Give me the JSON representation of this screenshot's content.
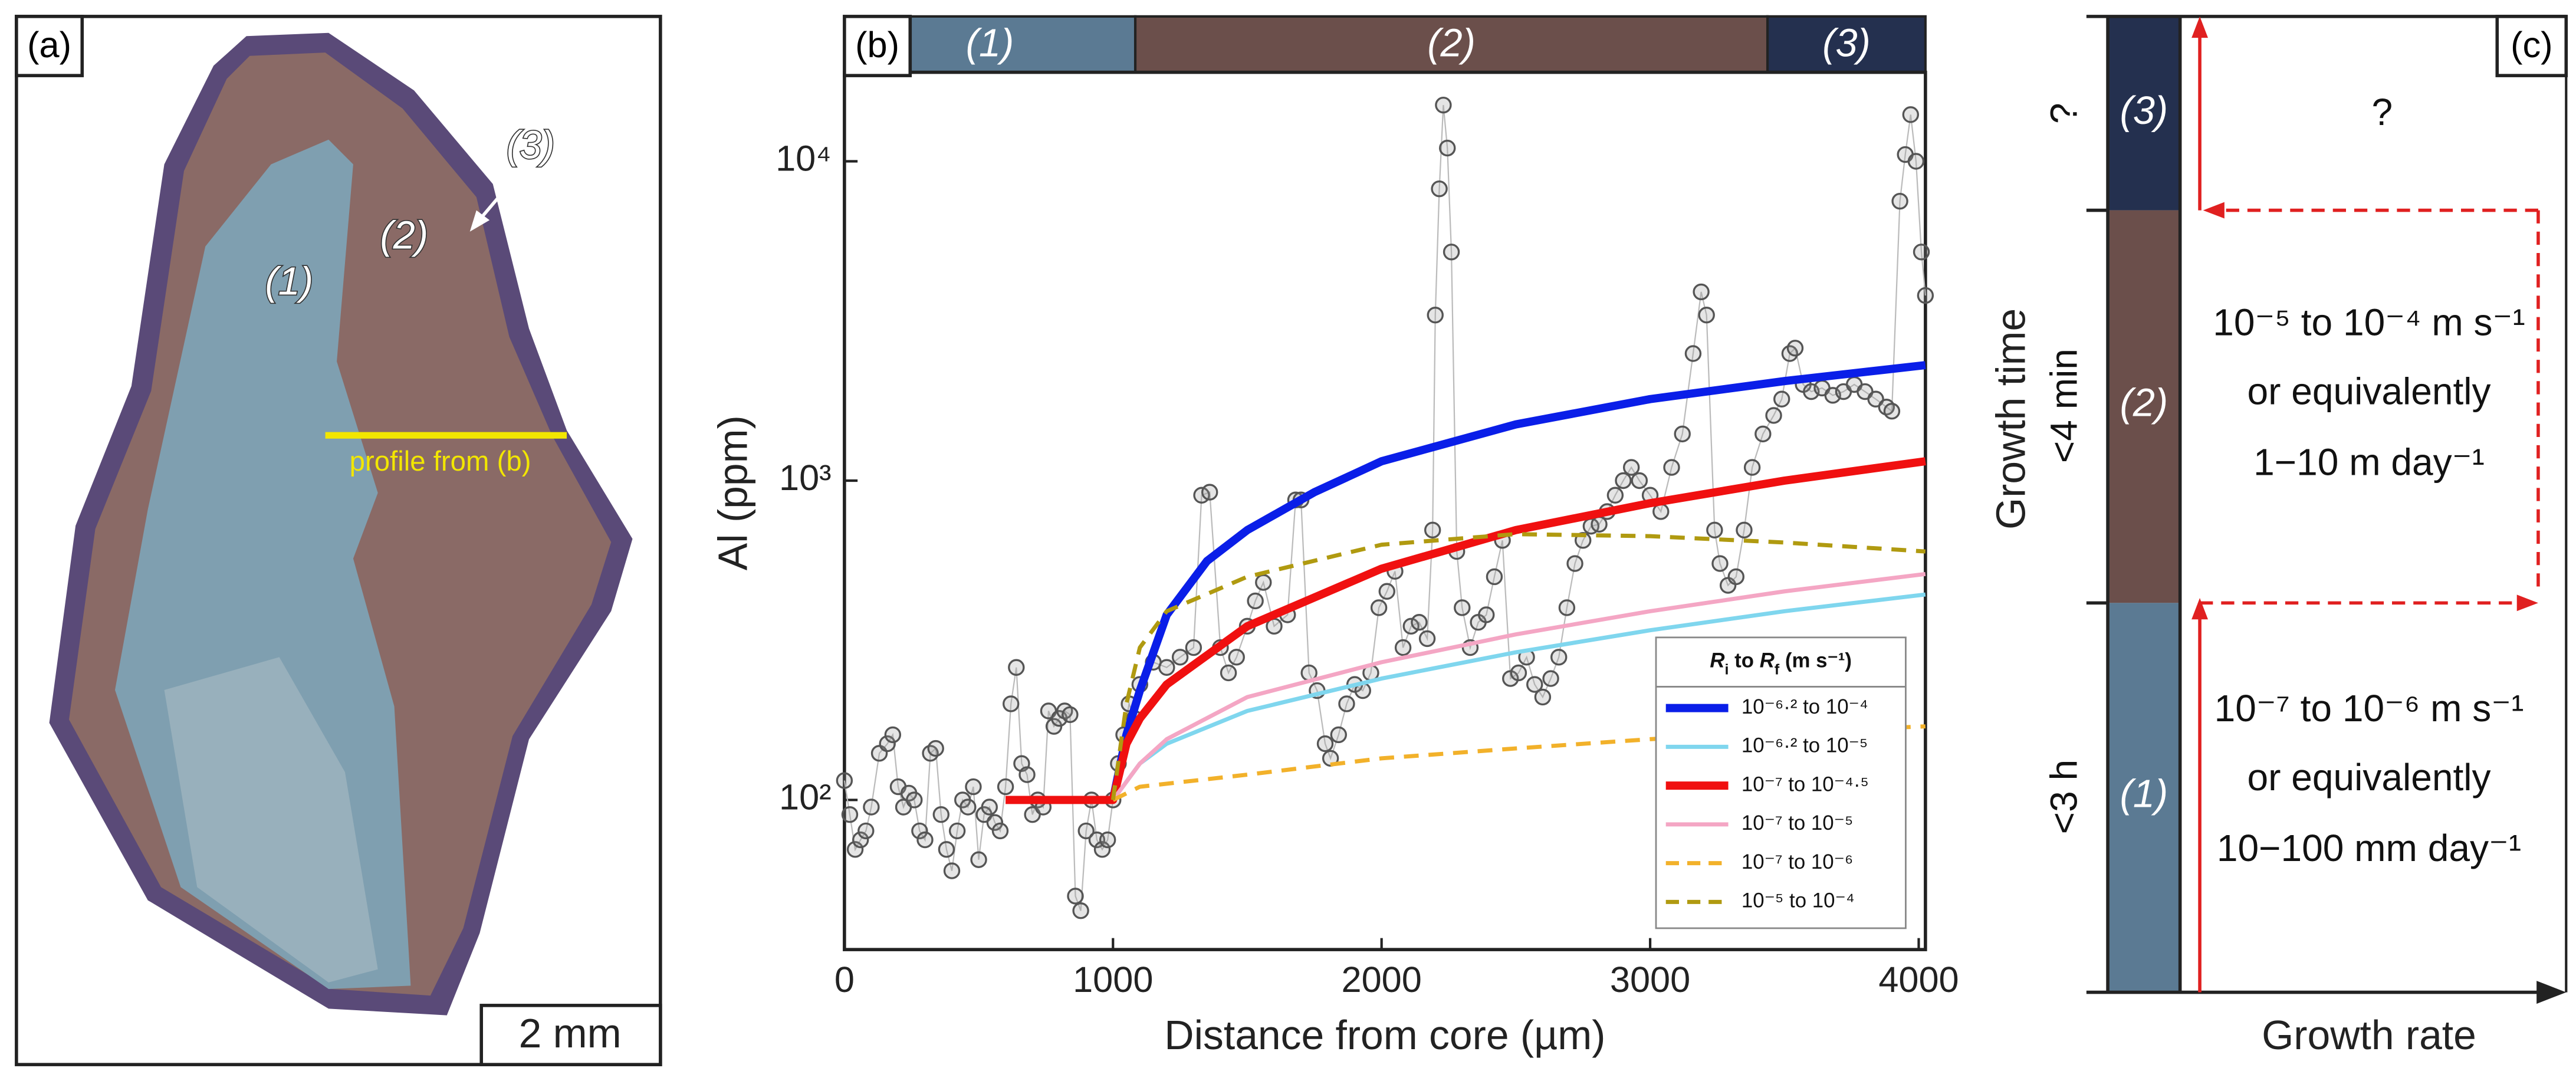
{
  "panel_a": {
    "label": "(a)",
    "zone_labels": [
      "(1)",
      "(2)",
      "(3)"
    ],
    "profile_label": "profile from (b)",
    "scale": "2 mm"
  },
  "chart_data": {
    "type": "scatter",
    "label": "(b)",
    "x_label": "Distance from core (µm)",
    "y_label": "Al (ppm)",
    "log_y": true,
    "xlim": [
      0,
      4025
    ],
    "ylim": [
      34,
      19000
    ],
    "xticks": [
      0,
      1000,
      2000,
      3000,
      4000
    ],
    "yticks": [
      {
        "value": 100,
        "label": "10²"
      },
      {
        "value": 1000,
        "label": "10³"
      },
      {
        "value": 10000,
        "label": "10⁴"
      }
    ],
    "zones": [
      {
        "label": "(1)",
        "start": 0,
        "end": 1083,
        "color": "#5b7a93"
      },
      {
        "label": "(2)",
        "start": 1083,
        "end": 3437,
        "color": "#6b4f4b"
      },
      {
        "label": "(3)",
        "start": 3437,
        "end": 4025,
        "color": "#24304f"
      }
    ],
    "points": {
      "color": "#555555",
      "x": [
        0,
        20,
        40,
        60,
        80,
        100,
        130,
        160,
        180,
        200,
        220,
        240,
        260,
        280,
        300,
        320,
        340,
        360,
        380,
        400,
        420,
        440,
        460,
        480,
        500,
        520,
        540,
        560,
        580,
        600,
        620,
        640,
        660,
        680,
        700,
        720,
        740,
        760,
        780,
        800,
        820,
        840,
        860,
        880,
        900,
        920,
        940,
        960,
        980,
        1000,
        1020,
        1040,
        1060,
        1080,
        1100,
        1150,
        1200,
        1250,
        1300,
        1330,
        1360,
        1400,
        1430,
        1460,
        1500,
        1530,
        1560,
        1600,
        1650,
        1680,
        1700,
        1730,
        1760,
        1790,
        1810,
        1840,
        1870,
        1900,
        1930,
        1960,
        1990,
        2020,
        2050,
        2080,
        2110,
        2140,
        2170,
        2190,
        2200,
        2215,
        2230,
        2245,
        2260,
        2280,
        2300,
        2330,
        2360,
        2390,
        2420,
        2450,
        2480,
        2510,
        2540,
        2570,
        2600,
        2630,
        2660,
        2690,
        2720,
        2750,
        2780,
        2810,
        2840,
        2870,
        2900,
        2930,
        2960,
        3000,
        3040,
        3080,
        3120,
        3160,
        3190,
        3210,
        3240,
        3260,
        3290,
        3320,
        3350,
        3380,
        3420,
        3460,
        3490,
        3520,
        3540,
        3570,
        3600,
        3640,
        3680,
        3720,
        3760,
        3800,
        3840,
        3880,
        3900,
        3930,
        3950,
        3970,
        3990,
        4010,
        4025
      ],
      "values": [
        115,
        90,
        70,
        75,
        80,
        95,
        140,
        150,
        160,
        110,
        95,
        105,
        100,
        80,
        75,
        140,
        145,
        90,
        70,
        60,
        80,
        100,
        95,
        110,
        65,
        90,
        95,
        85,
        80,
        110,
        200,
        260,
        130,
        120,
        90,
        100,
        95,
        190,
        170,
        180,
        190,
        185,
        50,
        45,
        80,
        100,
        75,
        70,
        75,
        100,
        130,
        160,
        200,
        180,
        230,
        270,
        260,
        280,
        300,
        900,
        920,
        300,
        250,
        280,
        350,
        420,
        480,
        350,
        380,
        870,
        870,
        250,
        220,
        150,
        135,
        160,
        200,
        230,
        220,
        250,
        400,
        450,
        520,
        300,
        350,
        360,
        320,
        700,
        3300,
        8200,
        15000,
        11000,
        5200,
        600,
        400,
        300,
        360,
        380,
        500,
        650,
        240,
        250,
        280,
        230,
        210,
        240,
        280,
        400,
        550,
        650,
        720,
        730,
        800,
        900,
        1000,
        1100,
        1000,
        900,
        800,
        1100,
        1400,
        2500,
        3900,
        3300,
        700,
        550,
        470,
        500,
        700,
        1100,
        1400,
        1600,
        1800,
        2500,
        2600,
        2000,
        1900,
        1950,
        1850,
        1900,
        2000,
        1900,
        1800,
        1700,
        1650,
        7500,
        10500,
        14000,
        10000,
        5200,
        3800
      ]
    },
    "legend": "lower right",
    "legend_title": [
      "R",
      "i",
      " to ",
      "R",
      "f",
      " (m s⁻¹)"
    ],
    "series": [
      {
        "name": "10⁻⁶·² to 10⁻⁴",
        "color": "#0a1ee8",
        "width": 5,
        "dashed": false,
        "x": [
          1000,
          1050,
          1100,
          1200,
          1350,
          1500,
          1750,
          2000,
          2500,
          3000,
          3500,
          4025
        ],
        "values": [
          100,
          160,
          220,
          380,
          560,
          700,
          920,
          1150,
          1500,
          1800,
          2050,
          2300
        ]
      },
      {
        "name": "10⁻⁶·² to 10⁻⁵",
        "color": "#7fd6ee",
        "width": 2.5,
        "dashed": false,
        "x": [
          1000,
          1100,
          1200,
          1500,
          2000,
          2500,
          3000,
          3500,
          4025
        ],
        "values": [
          100,
          130,
          150,
          190,
          240,
          290,
          340,
          390,
          440
        ]
      },
      {
        "name": "10⁻⁷ to 10⁻⁴·⁵",
        "color": "#f01010",
        "width": 5,
        "dashed": false,
        "x": [
          600,
          1000,
          1050,
          1100,
          1200,
          1500,
          2000,
          2500,
          3000,
          3500,
          4025
        ],
        "values": [
          100,
          100,
          150,
          180,
          230,
          350,
          530,
          700,
          850,
          1000,
          1150
        ]
      },
      {
        "name": "10⁻⁷ to 10⁻⁵",
        "color": "#f4a6c4",
        "width": 2.5,
        "dashed": false,
        "x": [
          1000,
          1100,
          1200,
          1500,
          2000,
          2500,
          3000,
          3500,
          4025
        ],
        "values": [
          100,
          130,
          155,
          210,
          270,
          330,
          390,
          450,
          510
        ]
      },
      {
        "name": "10⁻⁷ to 10⁻⁶",
        "color": "#f2b12a",
        "width": 2.5,
        "dashed": true,
        "x": [
          1000,
          1100,
          1500,
          2000,
          2500,
          3000,
          3500,
          4025
        ],
        "values": [
          100,
          110,
          120,
          135,
          145,
          155,
          163,
          170
        ]
      },
      {
        "name": "10⁻⁵ to 10⁻⁴",
        "color": "#b09a10",
        "width": 2.5,
        "dashed": true,
        "x": [
          1000,
          1050,
          1100,
          1200,
          1500,
          2000,
          2500,
          3000,
          3500,
          4025
        ],
        "values": [
          100,
          200,
          300,
          390,
          500,
          630,
          680,
          670,
          640,
          600
        ]
      }
    ]
  },
  "panel_c": {
    "label": "(c)",
    "zones": [
      "(1)",
      "(2)",
      "(3)"
    ],
    "times": [
      "<3 h",
      "<4 min",
      "?"
    ],
    "y_label": "Growth time",
    "x_label": "Growth rate",
    "rates": [
      [
        "10⁻⁷ to 10⁻⁶ m s⁻¹",
        "or equivalently",
        "10−100 mm day⁻¹"
      ],
      [
        "10⁻⁵ to 10⁻⁴ m s⁻¹",
        "or equivalently",
        "1−10 m day⁻¹"
      ],
      [
        "?"
      ]
    ]
  }
}
